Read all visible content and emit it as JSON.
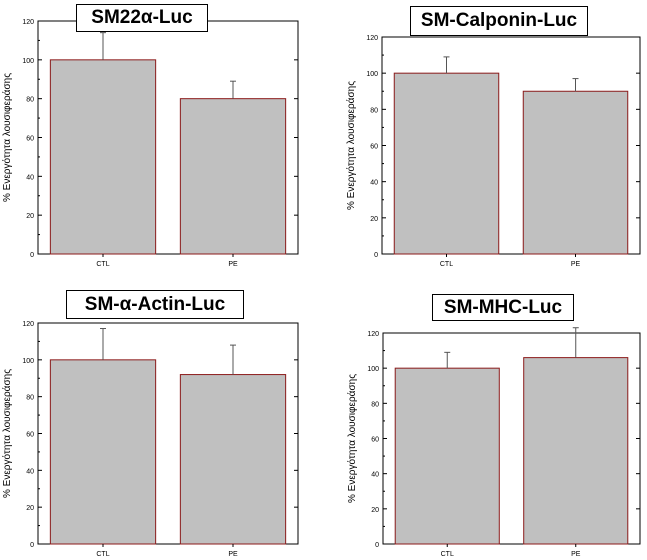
{
  "chart_data": [
    {
      "type": "bar",
      "title": "SM22α-Luc",
      "ylabel": "% Ενεργότητα λουσιφεράσης",
      "categories": [
        "CTL",
        "PE"
      ],
      "values": [
        100,
        80
      ],
      "errors": [
        14,
        9
      ],
      "ylim": [
        0,
        120
      ],
      "yticks": [
        0,
        20,
        40,
        60,
        80,
        100,
        120
      ],
      "grid": false
    },
    {
      "type": "bar",
      "title": "SM-Calponin-Luc",
      "ylabel": "% Ενεργότητα λουσιφεράσης",
      "categories": [
        "CTL",
        "PE"
      ],
      "values": [
        100,
        90
      ],
      "errors": [
        9,
        7
      ],
      "ylim": [
        0,
        120
      ],
      "yticks": [
        0,
        20,
        40,
        60,
        80,
        100,
        120
      ],
      "grid": false
    },
    {
      "type": "bar",
      "title": "SM-α-Actin-Luc",
      "ylabel": "% Ενεργότητα λουσιφεράσης",
      "categories": [
        "CTL",
        "PE"
      ],
      "values": [
        100,
        92
      ],
      "errors": [
        17,
        16
      ],
      "ylim": [
        0,
        120
      ],
      "yticks": [
        0,
        20,
        40,
        60,
        80,
        100,
        120
      ],
      "grid": false
    },
    {
      "type": "bar",
      "title": "SM-MHC-Luc",
      "ylabel": "% Ενεργότητα λουσιφεράσης",
      "categories": [
        "CTL",
        "PE"
      ],
      "values": [
        100,
        106
      ],
      "errors": [
        9,
        17
      ],
      "ylim": [
        0,
        120
      ],
      "yticks": [
        0,
        20,
        40,
        60,
        80,
        100,
        120
      ],
      "grid": false
    }
  ],
  "colors": {
    "bar_fill": "#c0c0c0",
    "bar_edge": "#8b1a1a",
    "axis": "#000000"
  }
}
